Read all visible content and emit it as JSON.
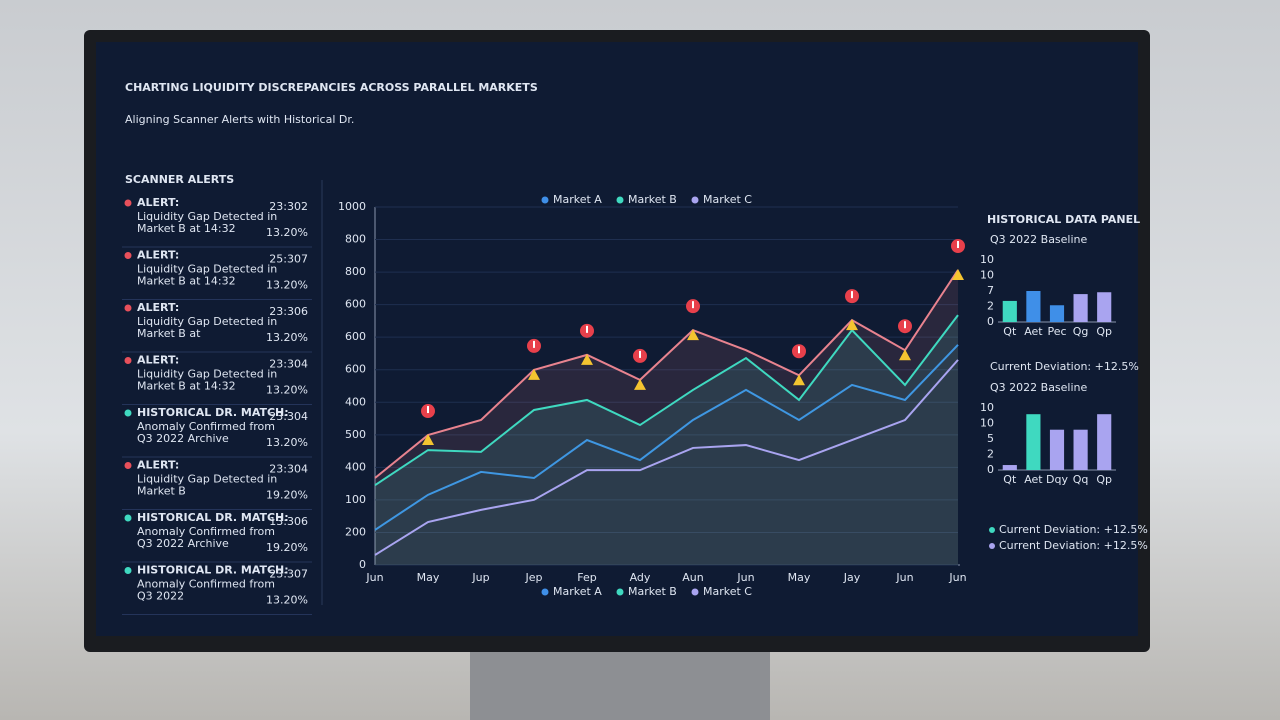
{
  "header": {
    "title": "CHARTING LIQUIDITY DISCREPANCIES ACROSS PARALLEL MARKETS",
    "subtitle": "Aligning Scanner Alerts with Historical Dr."
  },
  "alerts": {
    "title": "SCANNER ALERTS",
    "items": [
      {
        "kind": "alert",
        "label": "ALERT:",
        "text": [
          "Liquidity Gap Detected in",
          "Market B at 14:32"
        ],
        "time": "23:302",
        "pct": "13.20%"
      },
      {
        "kind": "alert",
        "label": "ALERT:",
        "text": [
          "Liquidity Gap Detected in",
          "Market B at 14:32"
        ],
        "time": "25:307",
        "pct": "13.20%"
      },
      {
        "kind": "alert",
        "label": "ALERT:",
        "text": [
          "Liquidity Gap Detected in",
          "Market B at"
        ],
        "time": "23:306",
        "pct": "13.20%"
      },
      {
        "kind": "alert",
        "label": "ALERT:",
        "text": [
          "Liquidity Gap Detected in",
          "Market B at 14:32"
        ],
        "time": "23:304",
        "pct": "13.20%"
      },
      {
        "kind": "match",
        "label": "HISTORICAL DR. MATCH:",
        "text": [
          "Anomaly Confirmed from",
          "Q3 2022 Archive"
        ],
        "time": "23:304",
        "pct": "13.20%"
      },
      {
        "kind": "alert",
        "label": "ALERT:",
        "text": [
          "Liquidity Gap Detected in",
          "Market B"
        ],
        "time": "23:304",
        "pct": "19.20%"
      },
      {
        "kind": "match",
        "label": "HISTORICAL DR. MATCH:",
        "text": [
          "Anomaly Confirmed from",
          "Q3 2022 Archive"
        ],
        "time": "13:306",
        "pct": "19.20%"
      },
      {
        "kind": "match",
        "label": "HISTORICAL DR. MATCH:",
        "text": [
          "Anomaly Confirmed from",
          "Q3 2022"
        ],
        "time": "23:307",
        "pct": "13.20%"
      }
    ]
  },
  "main_chart": {
    "type": "line",
    "y_labels": [
      "1000",
      "800",
      "800",
      "600",
      "600",
      "600",
      "400",
      "500",
      "400",
      "100",
      "200",
      "0"
    ],
    "categories": [
      "Jun",
      "May",
      "Jup",
      "Jep",
      "Fep",
      "Ady",
      "Aun",
      "Jun",
      "May",
      "Jay",
      "Jun",
      "Jun"
    ],
    "ylim": [
      0,
      1000
    ],
    "upper": {
      "color": "#e8838f",
      "values": [
        243,
        363,
        405,
        545,
        587,
        517,
        656,
        600,
        530,
        684,
        600,
        824
      ]
    },
    "series": [
      {
        "name": "Market A",
        "color": "#3f8fe8",
        "values": [
          98,
          196,
          260,
          243,
          349,
          293,
          405,
          489,
          405,
          503,
          461,
          615
        ]
      },
      {
        "name": "Market B",
        "color": "#3fd9c0",
        "values": [
          223,
          321,
          316,
          433,
          461,
          391,
          489,
          578,
          461,
          656,
          503,
          698
        ]
      },
      {
        "name": "Market C",
        "color": "#a9a4f0",
        "values": [
          28,
          120,
          154,
          182,
          265,
          265,
          327,
          335,
          293,
          349,
          405,
          573
        ]
      }
    ]
  },
  "side": {
    "title": "HISTORICAL DATA PANEL",
    "chart1": {
      "type": "bar",
      "title": "Q3 2022 Baseline",
      "y_labels": [
        "10",
        "10",
        "7",
        "2",
        "0"
      ],
      "ylim": [
        0,
        10
      ],
      "categories": [
        "Qt",
        "Aet",
        "Pec",
        "Qg",
        "Qp"
      ],
      "values": [
        3.4,
        5,
        2.7,
        4.5,
        4.8
      ],
      "colors": [
        "#3fd9c0",
        "#3f8fe8",
        "#3f8fe8",
        "#a9a4f0",
        "#a9a4f0"
      ]
    },
    "deviation": "Current Deviation: +12.5%",
    "chart2": {
      "type": "bar",
      "title": "Q3 2022 Baseline",
      "y_labels": [
        "10",
        "10",
        "5",
        "2",
        "0"
      ],
      "ylim": [
        0,
        10
      ],
      "categories": [
        "Qt",
        "Aet",
        "Dqy",
        "Qq",
        "Qp"
      ],
      "values": [
        0.8,
        9,
        6.5,
        6.5,
        9
      ],
      "colors": [
        "#a9a4f0",
        "#3fd9c0",
        "#a9a4f0",
        "#a9a4f0",
        "#a9a4f0"
      ]
    },
    "legend": [
      {
        "text": "Current Deviation: +12.5%",
        "color": "#3fd9c0"
      },
      {
        "text": "Current Deviation: +12.5%",
        "color": "#a9a4f0"
      }
    ]
  }
}
